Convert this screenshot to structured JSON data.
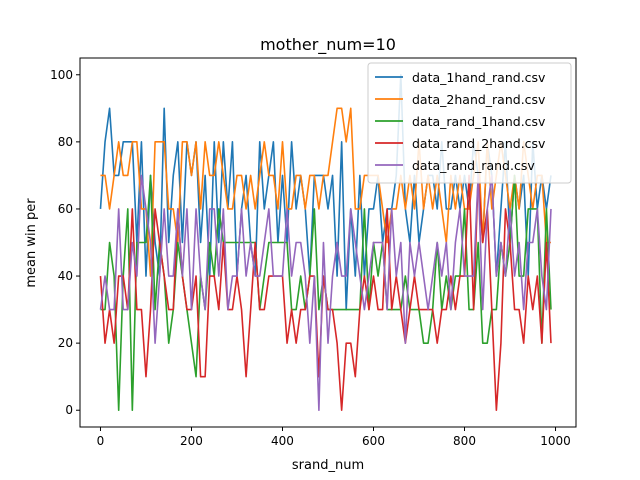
{
  "chart_data": {
    "type": "line",
    "title": "mother_num=10",
    "xlabel": "srand_num",
    "ylabel": "mean win per",
    "xlim": [
      -45,
      1045
    ],
    "ylim": [
      -5,
      105
    ],
    "xticks": [
      0,
      200,
      400,
      600,
      800,
      1000
    ],
    "yticks": [
      0,
      20,
      40,
      60,
      80,
      100
    ],
    "grid": false,
    "legend_position": "upper right",
    "x": [
      0,
      10,
      20,
      30,
      40,
      50,
      60,
      70,
      80,
      90,
      100,
      110,
      120,
      130,
      140,
      150,
      160,
      170,
      180,
      190,
      200,
      210,
      220,
      230,
      240,
      250,
      260,
      270,
      280,
      290,
      300,
      310,
      320,
      330,
      340,
      350,
      360,
      370,
      380,
      390,
      400,
      410,
      420,
      430,
      440,
      450,
      460,
      470,
      480,
      490,
      500,
      510,
      520,
      530,
      540,
      550,
      560,
      570,
      580,
      590,
      600,
      610,
      620,
      630,
      640,
      650,
      660,
      670,
      680,
      690,
      700,
      710,
      720,
      730,
      740,
      750,
      760,
      770,
      780,
      790,
      800,
      810,
      820,
      830,
      840,
      850,
      860,
      870,
      880,
      890,
      900,
      910,
      920,
      930,
      940,
      950,
      960,
      970,
      980,
      990
    ],
    "series": [
      {
        "name": "data_1hand_rand.csv",
        "color": "#1f77b4",
        "values": [
          60,
          80,
          90,
          70,
          70,
          80,
          80,
          80,
          50,
          80,
          40,
          70,
          50,
          40,
          90,
          50,
          70,
          80,
          50,
          80,
          70,
          80,
          50,
          70,
          40,
          80,
          50,
          80,
          60,
          80,
          40,
          60,
          70,
          50,
          40,
          80,
          60,
          70,
          80,
          50,
          70,
          50,
          80,
          60,
          70,
          60,
          40,
          70,
          70,
          70,
          60,
          70,
          40,
          80,
          30,
          60,
          40,
          70,
          40,
          60,
          60,
          70,
          50,
          60,
          60,
          70,
          100,
          60,
          50,
          70,
          50,
          60,
          70,
          70,
          60,
          80,
          60,
          60,
          70,
          60,
          70,
          60,
          80,
          70,
          50,
          80,
          70,
          40,
          60,
          80,
          50,
          70,
          60,
          70,
          40,
          80,
          60,
          70,
          60,
          70
        ]
      },
      {
        "name": "data_2hand_rand.csv",
        "color": "#ff7f0e",
        "values": [
          70,
          70,
          60,
          70,
          80,
          70,
          70,
          80,
          80,
          60,
          60,
          40,
          80,
          80,
          80,
          60,
          60,
          50,
          80,
          80,
          70,
          80,
          60,
          80,
          70,
          70,
          80,
          70,
          60,
          60,
          70,
          70,
          60,
          70,
          60,
          70,
          80,
          70,
          70,
          60,
          80,
          60,
          60,
          70,
          70,
          60,
          70,
          70,
          60,
          70,
          70,
          80,
          90,
          90,
          80,
          90,
          60,
          60,
          70,
          70,
          70,
          70,
          60,
          50,
          60,
          60,
          70,
          60,
          70,
          60,
          80,
          60,
          70,
          60,
          70,
          60,
          50,
          70,
          60,
          70,
          60,
          60,
          70,
          80,
          50,
          80,
          60,
          70,
          80,
          70,
          60,
          70,
          60,
          80,
          70,
          60,
          70,
          70,
          50,
          50
        ]
      },
      {
        "name": "data_rand_1hand.csv",
        "color": "#2ca02c",
        "values": [
          30,
          30,
          50,
          40,
          0,
          40,
          60,
          0,
          50,
          50,
          50,
          70,
          30,
          50,
          40,
          20,
          30,
          50,
          40,
          30,
          20,
          10,
          40,
          30,
          50,
          40,
          60,
          50,
          50,
          50,
          50,
          50,
          50,
          50,
          50,
          30,
          40,
          50,
          50,
          50,
          50,
          50,
          30,
          30,
          40,
          30,
          40,
          60,
          30,
          40,
          30,
          30,
          30,
          30,
          30,
          30,
          30,
          30,
          60,
          30,
          50,
          40,
          50,
          30,
          30,
          30,
          30,
          40,
          30,
          30,
          30,
          20,
          20,
          30,
          50,
          30,
          40,
          30,
          40,
          40,
          60,
          30,
          30,
          50,
          20,
          20,
          30,
          30,
          50,
          40,
          50,
          70,
          40,
          40,
          60,
          60,
          60,
          20,
          60,
          30
        ]
      },
      {
        "name": "data_rand_2hand.csv",
        "color": "#d62728",
        "values": [
          40,
          20,
          30,
          20,
          40,
          40,
          30,
          60,
          30,
          30,
          10,
          30,
          60,
          50,
          40,
          30,
          30,
          60,
          40,
          30,
          30,
          40,
          10,
          10,
          40,
          40,
          30,
          50,
          30,
          30,
          40,
          30,
          10,
          30,
          50,
          30,
          30,
          40,
          40,
          40,
          40,
          20,
          30,
          20,
          30,
          30,
          40,
          40,
          10,
          40,
          30,
          30,
          20,
          0,
          20,
          20,
          10,
          30,
          40,
          30,
          40,
          30,
          30,
          60,
          30,
          40,
          30,
          20,
          30,
          40,
          30,
          30,
          30,
          30,
          20,
          30,
          30,
          40,
          30,
          40,
          40,
          70,
          30,
          70,
          50,
          60,
          30,
          0,
          20,
          60,
          50,
          30,
          30,
          20,
          40,
          30,
          40,
          20,
          50,
          20
        ]
      },
      {
        "name": "data_rand_rand.csv",
        "color": "#9467bd",
        "values": [
          30,
          40,
          30,
          30,
          60,
          30,
          30,
          50,
          40,
          70,
          60,
          50,
          20,
          40,
          60,
          40,
          40,
          60,
          40,
          60,
          30,
          60,
          40,
          30,
          60,
          60,
          40,
          60,
          30,
          40,
          40,
          60,
          40,
          50,
          40,
          40,
          50,
          60,
          40,
          40,
          40,
          60,
          40,
          50,
          50,
          40,
          20,
          40,
          0,
          50,
          20,
          40,
          50,
          40,
          40,
          60,
          50,
          40,
          30,
          40,
          50,
          50,
          50,
          30,
          60,
          40,
          50,
          20,
          50,
          40,
          50,
          40,
          30,
          40,
          50,
          40,
          50,
          30,
          50,
          60,
          40,
          40,
          40,
          70,
          30,
          60,
          70,
          40,
          50,
          40,
          60,
          40,
          50,
          30,
          50,
          50,
          60,
          40,
          30,
          60
        ]
      }
    ]
  }
}
